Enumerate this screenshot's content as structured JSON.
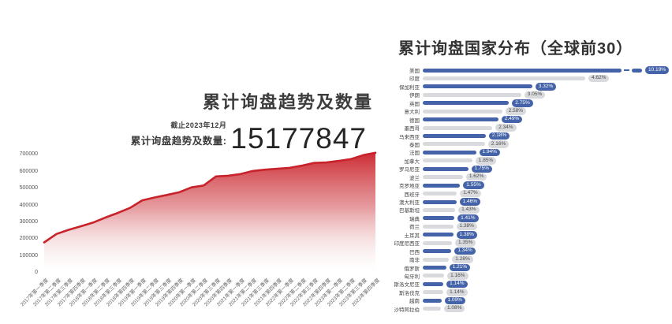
{
  "colors": {
    "accent_blue": "#4463a8",
    "bar_gray": "#d9dadd",
    "area_line_red": "#c8222a",
    "area_fill_red": "#cb262d",
    "title_text": "#3c3c3c"
  },
  "left_panel": {
    "title": "累计询盘趋势及数量",
    "stat_asof": "截止2023年12月",
    "stat_label": "累计询盘趋势及数量:",
    "stat_value": "15177847"
  },
  "right_panel": {
    "title": "累计询盘国家分布（全球前30）"
  },
  "chart_data": [
    {
      "type": "area",
      "title": "累计询盘趋势及数量",
      "xlabel": "",
      "ylabel": "",
      "ylim": [
        0,
        730000
      ],
      "yticks": [
        0,
        100000,
        200000,
        300000,
        400000,
        500000,
        600000,
        700000
      ],
      "grid": false,
      "legend": "none",
      "x": [
        "2017年第一季度",
        "2017年第二季度",
        "2017年第三季度",
        "2017年第四季度",
        "2018年第一季度",
        "2018年第二季度",
        "2018年第三季度",
        "2018年第四季度",
        "2019年第一季度",
        "2019年第二季度",
        "2019年第三季度",
        "2019年第四季度",
        "2020年第一季度",
        "2020年第二季度",
        "2020年第三季度",
        "2020年第四季度",
        "2021年第一季度",
        "2021年第二季度",
        "2021年第三季度",
        "2021年第四季度",
        "2022年第一季度",
        "2022年第二季度",
        "2022年第三季度",
        "2022年第四季度",
        "2023年第一季度",
        "2023年第二季度",
        "2023年第三季度",
        "2023年第四季度"
      ],
      "values": [
        180000,
        230000,
        255000,
        276000,
        298000,
        328000,
        355000,
        385000,
        430000,
        447000,
        462000,
        478000,
        507000,
        518000,
        572000,
        576000,
        586000,
        604000,
        612000,
        617000,
        623000,
        636000,
        652000,
        655000,
        664000,
        675000,
        698000,
        712000
      ]
    },
    {
      "type": "bar",
      "orientation": "horizontal",
      "title": "累计询盘国家分布（全球前30）",
      "value_suffix": "%",
      "axis_break_on_first_bar": true,
      "bar_color_pattern": "alternating blue/gray",
      "categories": [
        "美国",
        "印度",
        "保加利亚",
        "伊朗",
        "英国",
        "意大利",
        "德国",
        "墨西哥",
        "马来西亚",
        "泰国",
        "法国",
        "加拿大",
        "罗马尼亚",
        "波兰",
        "克罗地亚",
        "西班牙",
        "澳大利亚",
        "巴基斯坦",
        "瑞典",
        "荷兰",
        "土耳其",
        "印度尼西亚",
        "巴西",
        "南非",
        "俄罗斯",
        "匈牙利",
        "斯洛文尼亚",
        "斯洛伐克",
        "越南",
        "沙特阿拉伯"
      ],
      "values": [
        10.19,
        4.62,
        3.32,
        3.05,
        2.75,
        2.58,
        2.49,
        2.34,
        2.18,
        2.16,
        1.94,
        1.85,
        1.75,
        1.62,
        1.55,
        1.47,
        1.46,
        1.43,
        1.41,
        1.38,
        1.38,
        1.35,
        1.34,
        1.28,
        1.21,
        1.16,
        1.14,
        1.14,
        1.09,
        1.08
      ]
    }
  ]
}
